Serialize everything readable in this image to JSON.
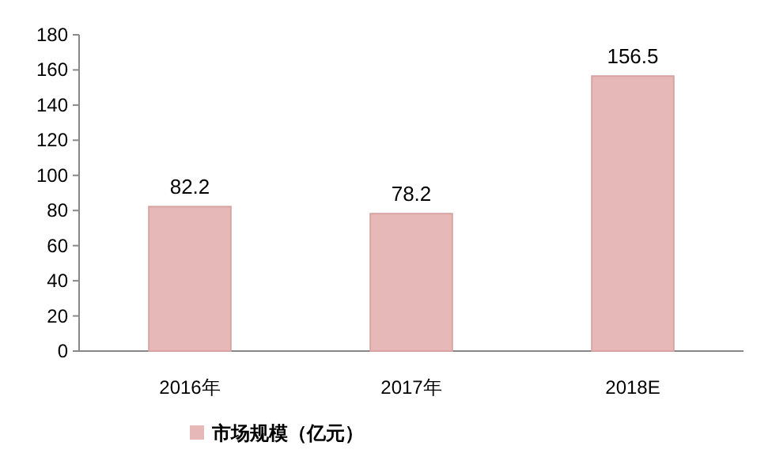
{
  "chart_data": {
    "type": "bar",
    "categories": [
      "2016年",
      "2017年",
      "2018E"
    ],
    "series": [
      {
        "name": "市场规模（亿元）",
        "color": "#e6b9b8",
        "values": [
          82.2,
          78.2,
          156.5
        ]
      }
    ],
    "ylim": [
      0,
      180
    ],
    "yticks": [
      0,
      20,
      40,
      60,
      80,
      100,
      120,
      140,
      160,
      180
    ],
    "data_labels": true,
    "legend": "bottom"
  }
}
